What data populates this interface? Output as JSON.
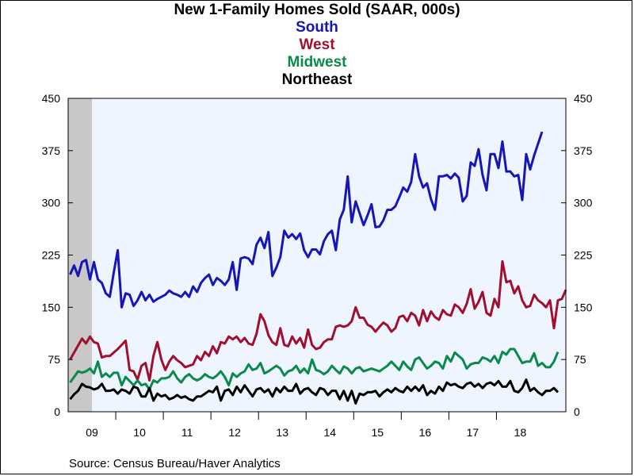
{
  "chart_data": {
    "type": "line",
    "title": "New 1-Family Homes Sold (SAAR, 000s)",
    "xlabel": "",
    "ylabel": "",
    "ylim": [
      0,
      450
    ],
    "yticks": [
      0,
      75,
      150,
      225,
      300,
      375,
      450
    ],
    "x_tick_labels": [
      "09",
      "10",
      "11",
      "12",
      "13",
      "14",
      "15",
      "16",
      "17",
      "18"
    ],
    "x_start": "2009-01",
    "frequency": "monthly",
    "recession_shading": {
      "start": "2009-01",
      "end": "2009-06"
    },
    "grid": false,
    "legend": "series names stacked under title, colored by series",
    "colors": {
      "background": "#ffffff",
      "plot_background": "#eef5ff",
      "recession": "#c8c8c8"
    },
    "series": [
      {
        "name": "South",
        "color": "#1616b8",
        "values": [
          197,
          210,
          195,
          215,
          218,
          190,
          215,
          190,
          185,
          170,
          165,
          200,
          232,
          150,
          170,
          168,
          152,
          160,
          172,
          160,
          168,
          158,
          162,
          165,
          168,
          174,
          170,
          168,
          165,
          172,
          165,
          180,
          172,
          185,
          192,
          197,
          182,
          192,
          188,
          182,
          190,
          215,
          175,
          220,
          222,
          220,
          212,
          240,
          250,
          235,
          258,
          195,
          207,
          222,
          260,
          250,
          255,
          248,
          256,
          232,
          222,
          233,
          233,
          226,
          245,
          255,
          260,
          232,
          276,
          290,
          338,
          272,
          302,
          285,
          268,
          282,
          298,
          265,
          266,
          275,
          290,
          290,
          295,
          308,
          322,
          316,
          330,
          370,
          338,
          322,
          328,
          305,
          290,
          338,
          338,
          340,
          335,
          342,
          336,
          302,
          310,
          358,
          353,
          377,
          340,
          318,
          370,
          370,
          350,
          388,
          345,
          345,
          338,
          340,
          304,
          370,
          348,
          368,
          385,
          402
        ]
      },
      {
        "name": "West",
        "color": "#a0102e",
        "values": [
          75,
          85,
          95,
          105,
          98,
          108,
          100,
          98,
          78,
          80,
          80,
          85,
          90,
          96,
          102,
          60,
          58,
          46,
          66,
          70,
          45,
          80,
          100,
          75,
          60,
          72,
          80,
          74,
          70,
          64,
          66,
          68,
          80,
          74,
          86,
          80,
          94,
          84,
          100,
          98,
          108,
          104,
          108,
          100,
          106,
          98,
          96,
          112,
          140,
          130,
          110,
          100,
          96,
          120,
          96,
          94,
          108,
          98,
          106,
          92,
          118,
          96,
          90,
          92,
          100,
          104,
          104,
          122,
          124,
          122,
          124,
          130,
          150,
          135,
          135,
          125,
          122,
          115,
          122,
          128,
          124,
          115,
          120,
          136,
          138,
          130,
          142,
          138,
          124,
          146,
          130,
          144,
          136,
          132,
          146,
          140,
          138,
          154,
          150,
          142,
          155,
          176,
          148,
          158,
          172,
          142,
          138,
          162,
          150,
          216,
          186,
          188,
          170,
          180,
          160,
          150,
          152,
          168,
          160,
          156,
          150,
          160,
          120,
          160,
          162,
          175
        ]
      },
      {
        "name": "Midwest",
        "color": "#0a8a4a",
        "values": [
          42,
          50,
          58,
          56,
          58,
          62,
          55,
          72,
          50,
          55,
          50,
          56,
          56,
          38,
          50,
          44,
          38,
          45,
          38,
          40,
          32,
          45,
          42,
          48,
          48,
          50,
          58,
          48,
          42,
          50,
          54,
          48,
          45,
          48,
          54,
          50,
          48,
          52,
          58,
          50,
          38,
          55,
          50,
          55,
          58,
          68,
          60,
          62,
          70,
          55,
          58,
          62,
          66,
          62,
          52,
          58,
          60,
          66,
          56,
          62,
          55,
          75,
          60,
          58,
          54,
          58,
          66,
          60,
          55,
          65,
          62,
          55,
          62,
          64,
          58,
          60,
          62,
          60,
          58,
          62,
          66,
          72,
          66,
          60,
          72,
          65,
          60,
          75,
          78,
          70,
          62,
          66,
          72,
          70,
          62,
          80,
          72,
          85,
          80,
          75,
          62,
          68,
          70,
          70,
          78,
          76,
          72,
          80,
          70,
          86,
          82,
          90,
          90,
          80,
          70,
          72,
          72,
          84,
          66,
          70,
          64,
          64,
          72,
          86
        ]
      },
      {
        "name": "Northeast",
        "color": "#000000",
        "values": [
          18,
          25,
          30,
          40,
          36,
          35,
          32,
          34,
          40,
          30,
          30,
          32,
          26,
          32,
          30,
          26,
          36,
          34,
          22,
          22,
          34,
          16,
          26,
          22,
          24,
          18,
          20,
          24,
          20,
          22,
          18,
          16,
          22,
          22,
          26,
          30,
          28,
          36,
          16,
          30,
          32,
          24,
          36,
          28,
          38,
          30,
          22,
          32,
          34,
          28,
          32,
          22,
          34,
          28,
          36,
          30,
          30,
          40,
          26,
          32,
          34,
          28,
          24,
          34,
          32,
          24,
          30,
          30,
          18,
          30,
          16,
          30,
          12,
          26,
          24,
          28,
          28,
          30,
          22,
          28,
          32,
          28,
          34,
          30,
          28,
          36,
          30,
          36,
          30,
          38,
          24,
          30,
          26,
          36,
          30,
          42,
          38,
          40,
          36,
          34,
          40,
          42,
          36,
          40,
          34,
          40,
          42,
          38,
          44,
          36,
          36,
          44,
          30,
          28,
          34,
          46,
          30,
          34,
          28,
          24,
          30,
          30,
          34,
          28
        ]
      }
    ]
  },
  "source_text": "Source:  Census Bureau/Haver Analytics"
}
